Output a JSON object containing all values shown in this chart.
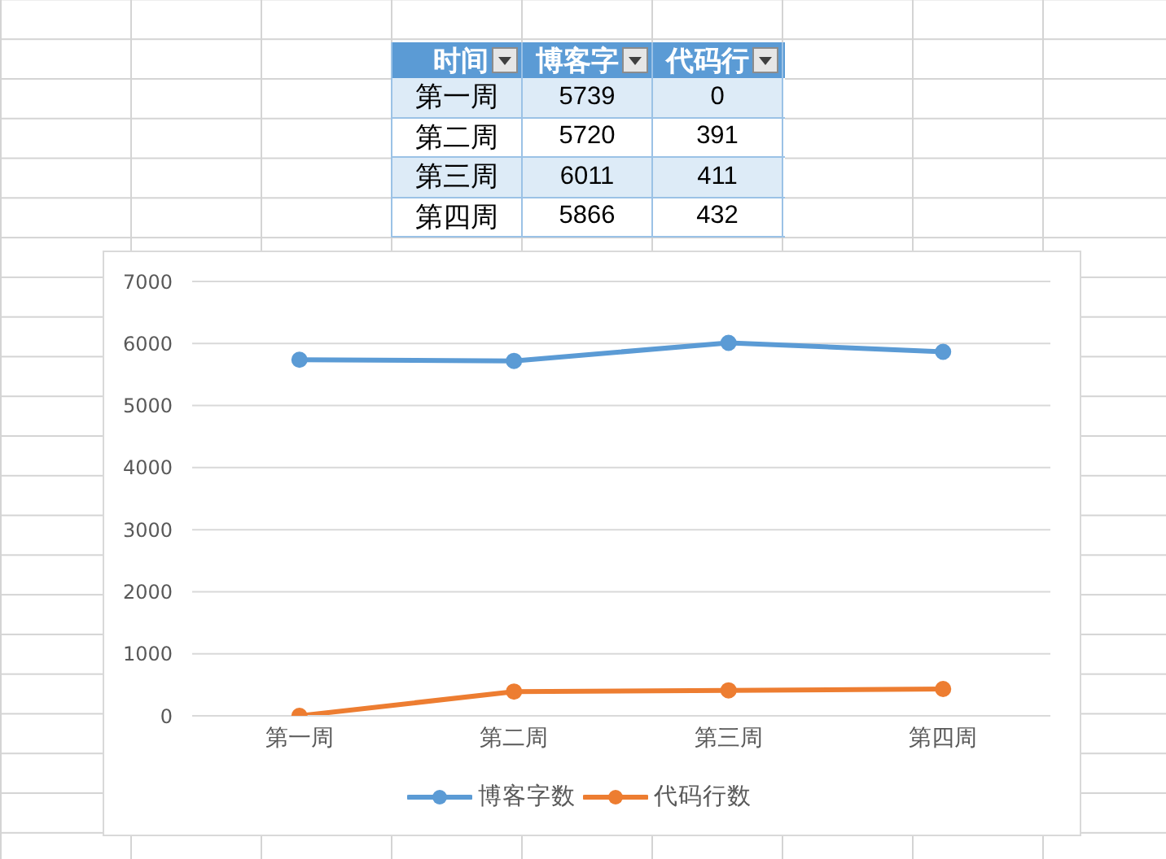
{
  "chart_data": [
    {
      "type": "other",
      "annotations": [
        "时间"
      ],
      "categories": [
        "第一周",
        "第二周",
        "第三周",
        "第四周"
      ],
      "series": [
        {
          "name": "博客字",
          "colors": [
            "#ddebf7",
            "#ffffff",
            "#ddebf7",
            "#ffffff"
          ],
          "values": [
            5739,
            5720,
            6011,
            5866
          ]
        },
        {
          "name": "代码行",
          "colors": [
            "#ddebf7",
            "#ffffff",
            "#ddebf7",
            "#ffffff"
          ],
          "values": [
            0,
            391,
            411,
            432
          ]
        }
      ],
      "data_labels": true
    },
    {
      "type": "line",
      "categories": [
        "第一周",
        "第二周",
        "第三周",
        "第四周"
      ],
      "series": [
        {
          "name": "博客字数",
          "color": "#5b9bd5",
          "values": [
            5739,
            5720,
            6011,
            5866
          ]
        },
        {
          "name": "代码行数",
          "color": "#ed7d31",
          "values": [
            0,
            391,
            411,
            432
          ]
        }
      ],
      "ylim": [
        0,
        7000
      ],
      "yticks": [
        0,
        1000,
        2000,
        3000,
        4000,
        5000,
        6000,
        7000
      ],
      "grid": "y",
      "legend": "bottom",
      "marker": "circle",
      "line_style": "solid"
    }
  ]
}
